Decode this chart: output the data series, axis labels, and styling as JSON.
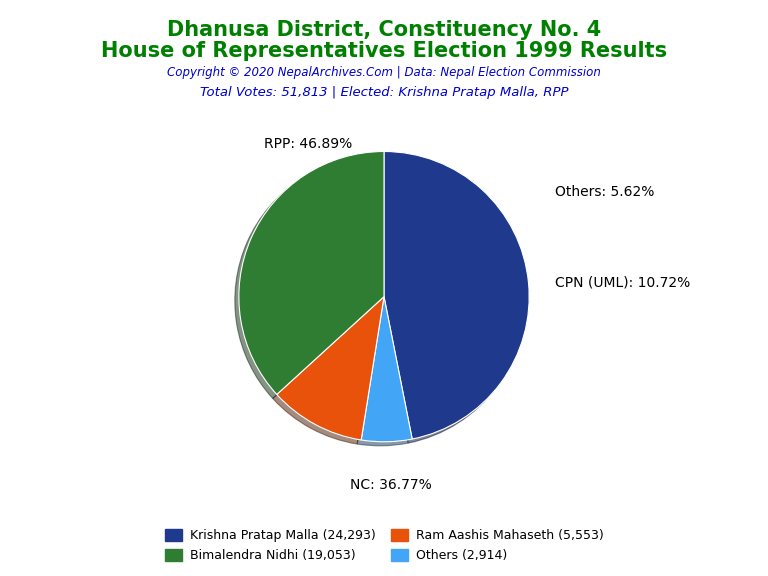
{
  "title_line1": "Dhanusa District, Constituency No. 4",
  "title_line2": "House of Representatives Election 1999 Results",
  "title_color": "#008000",
  "copyright_text": "Copyright © 2020 NepalArchives.Com | Data: Nepal Election Commission",
  "copyright_color": "#0000CD",
  "subtitle_text": "Total Votes: 51,813 | Elected: Krishna Pratap Malla, RPP",
  "subtitle_color": "#0000CD",
  "slices": [
    {
      "label": "RPP",
      "pct": 46.89,
      "color": "#1F3A8C"
    },
    {
      "label": "Others",
      "pct": 5.62,
      "color": "#42A5F5"
    },
    {
      "label": "CPN (UML)",
      "pct": 10.72,
      "color": "#E8520A"
    },
    {
      "label": "NC",
      "pct": 36.77,
      "color": "#2E7D32"
    }
  ],
  "label_positions": {
    "RPP": [
      -0.52,
      1.05,
      "center"
    ],
    "NC": [
      0.05,
      -1.3,
      "center"
    ],
    "CPN (UML)": [
      1.18,
      0.1,
      "left"
    ],
    "Others": [
      1.18,
      0.72,
      "left"
    ]
  },
  "legend_entries": [
    {
      "text": "Krishna Pratap Malla (24,293)",
      "color": "#1F3A8C"
    },
    {
      "text": "Bimalendra Nidhi (19,053)",
      "color": "#2E7D32"
    },
    {
      "text": "Ram Aashis Mahaseth (5,553)",
      "color": "#E8520A"
    },
    {
      "text": "Others (2,914)",
      "color": "#42A5F5"
    }
  ],
  "background_color": "#FFFFFF"
}
